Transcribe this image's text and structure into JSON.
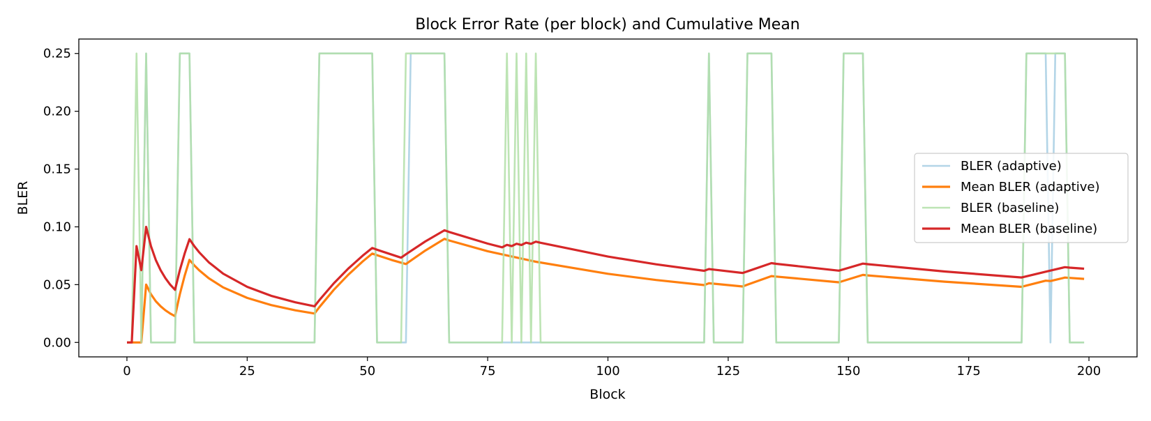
{
  "chart_data": {
    "type": "line",
    "title": "Block Error Rate (per block) and Cumulative Mean",
    "xlabel": "Block",
    "ylabel": "BLER",
    "xlim": [
      -10,
      210
    ],
    "ylim": [
      -0.0125,
      0.2625
    ],
    "xticks": [
      0,
      25,
      50,
      75,
      100,
      125,
      150,
      175,
      200
    ],
    "xtick_labels": [
      "0",
      "25",
      "50",
      "75",
      "100",
      "125",
      "150",
      "175",
      "200"
    ],
    "yticks": [
      0,
      0.05,
      0.1,
      0.15,
      0.2,
      0.25
    ],
    "ytick_labels": [
      "0.00",
      "0.05",
      "0.10",
      "0.15",
      "0.20",
      "0.25"
    ],
    "grid": false,
    "legend_position": "center-right",
    "series": [
      {
        "name": "BLER (adaptive)",
        "color": "#a6cee3",
        "style": "thin",
        "points": [
          [
            0,
            0
          ],
          [
            3,
            0
          ],
          [
            4,
            0.25
          ],
          [
            5,
            0
          ],
          [
            10,
            0
          ],
          [
            11,
            0.25
          ],
          [
            13,
            0.25
          ],
          [
            14,
            0
          ],
          [
            39,
            0
          ],
          [
            40,
            0.25
          ],
          [
            51,
            0.25
          ],
          [
            52,
            0
          ],
          [
            58,
            0
          ],
          [
            59,
            0.25
          ],
          [
            66,
            0.25
          ],
          [
            67,
            0
          ],
          [
            120,
            0
          ],
          [
            121,
            0.25
          ],
          [
            122,
            0
          ],
          [
            128,
            0
          ],
          [
            129,
            0.25
          ],
          [
            134,
            0.25
          ],
          [
            135,
            0
          ],
          [
            148,
            0
          ],
          [
            149,
            0.25
          ],
          [
            153,
            0.25
          ],
          [
            154,
            0
          ],
          [
            186,
            0
          ],
          [
            187,
            0.25
          ],
          [
            191,
            0.25
          ],
          [
            192,
            0
          ],
          [
            193,
            0.25
          ],
          [
            195,
            0.25
          ],
          [
            196,
            0
          ],
          [
            199,
            0
          ]
        ]
      },
      {
        "name": "Mean BLER (adaptive)",
        "color": "#ff7f0e",
        "style": "thick",
        "points": [
          [
            0,
            0
          ],
          [
            3,
            0
          ],
          [
            4,
            0.05
          ],
          [
            5,
            0.0417
          ],
          [
            6,
            0.0357
          ],
          [
            7,
            0.0313
          ],
          [
            8,
            0.0278
          ],
          [
            9,
            0.025
          ],
          [
            10,
            0.0227
          ],
          [
            11,
            0.0417
          ],
          [
            12,
            0.0577
          ],
          [
            13,
            0.0714
          ],
          [
            14,
            0.0667
          ],
          [
            15,
            0.0625
          ],
          [
            17,
            0.0556
          ],
          [
            20,
            0.0476
          ],
          [
            25,
            0.0385
          ],
          [
            30,
            0.0323
          ],
          [
            35,
            0.0278
          ],
          [
            39,
            0.025
          ],
          [
            40,
            0.0305
          ],
          [
            43,
            0.0455
          ],
          [
            46,
            0.0585
          ],
          [
            49,
            0.07
          ],
          [
            51,
            0.0769
          ],
          [
            52,
            0.0755
          ],
          [
            55,
            0.0714
          ],
          [
            58,
            0.0678
          ],
          [
            59,
            0.0708
          ],
          [
            62,
            0.0794
          ],
          [
            66,
            0.0896
          ],
          [
            67,
            0.0882
          ],
          [
            75,
            0.0789
          ],
          [
            85,
            0.0698
          ],
          [
            100,
            0.0594
          ],
          [
            110,
            0.054
          ],
          [
            120,
            0.0496
          ],
          [
            121,
            0.0512
          ],
          [
            122,
            0.0508
          ],
          [
            128,
            0.0484
          ],
          [
            129,
            0.05
          ],
          [
            134,
            0.0574
          ],
          [
            135,
            0.057
          ],
          [
            148,
            0.052
          ],
          [
            149,
            0.0533
          ],
          [
            153,
            0.0584
          ],
          [
            154,
            0.058
          ],
          [
            170,
            0.0526
          ],
          [
            186,
            0.0481
          ],
          [
            187,
            0.0492
          ],
          [
            191,
            0.0534
          ],
          [
            192,
            0.0531
          ],
          [
            193,
            0.0541
          ],
          [
            195,
            0.0561
          ],
          [
            196,
            0.0558
          ],
          [
            199,
            0.055
          ]
        ]
      },
      {
        "name": "BLER (baseline)",
        "color": "#b2dfa7",
        "style": "thin",
        "points": [
          [
            0,
            0
          ],
          [
            1,
            0
          ],
          [
            2,
            0.25
          ],
          [
            3,
            0
          ],
          [
            4,
            0.25
          ],
          [
            5,
            0
          ],
          [
            10,
            0
          ],
          [
            11,
            0.25
          ],
          [
            13,
            0.25
          ],
          [
            14,
            0
          ],
          [
            39,
            0
          ],
          [
            40,
            0.25
          ],
          [
            51,
            0.25
          ],
          [
            52,
            0
          ],
          [
            57,
            0
          ],
          [
            58,
            0.25
          ],
          [
            66,
            0.25
          ],
          [
            67,
            0
          ],
          [
            78,
            0
          ],
          [
            79,
            0.25
          ],
          [
            80,
            0
          ],
          [
            81,
            0.25
          ],
          [
            82,
            0
          ],
          [
            83,
            0.25
          ],
          [
            84,
            0
          ],
          [
            85,
            0.25
          ],
          [
            86,
            0
          ],
          [
            120,
            0
          ],
          [
            121,
            0.25
          ],
          [
            122,
            0
          ],
          [
            128,
            0
          ],
          [
            129,
            0.25
          ],
          [
            134,
            0.25
          ],
          [
            135,
            0
          ],
          [
            148,
            0
          ],
          [
            149,
            0.25
          ],
          [
            153,
            0.25
          ],
          [
            154,
            0
          ],
          [
            186,
            0
          ],
          [
            187,
            0.25
          ],
          [
            195,
            0.25
          ],
          [
            196,
            0
          ],
          [
            199,
            0
          ]
        ]
      },
      {
        "name": "Mean BLER (baseline)",
        "color": "#d62728",
        "style": "thick",
        "points": [
          [
            0,
            0
          ],
          [
            1,
            0
          ],
          [
            2,
            0.0833
          ],
          [
            3,
            0.0625
          ],
          [
            4,
            0.1
          ],
          [
            5,
            0.0833
          ],
          [
            6,
            0.0714
          ],
          [
            7,
            0.0625
          ],
          [
            8,
            0.0556
          ],
          [
            9,
            0.05
          ],
          [
            10,
            0.0455
          ],
          [
            11,
            0.0625
          ],
          [
            12,
            0.0769
          ],
          [
            13,
            0.0893
          ],
          [
            14,
            0.0833
          ],
          [
            15,
            0.0781
          ],
          [
            17,
            0.0694
          ],
          [
            20,
            0.0595
          ],
          [
            25,
            0.0481
          ],
          [
            30,
            0.0403
          ],
          [
            35,
            0.0347
          ],
          [
            39,
            0.0313
          ],
          [
            40,
            0.0366
          ],
          [
            43,
            0.0511
          ],
          [
            46,
            0.0638
          ],
          [
            49,
            0.075
          ],
          [
            51,
            0.0817
          ],
          [
            52,
            0.0802
          ],
          [
            57,
            0.0733
          ],
          [
            58,
            0.0763
          ],
          [
            62,
            0.0873
          ],
          [
            66,
            0.097
          ],
          [
            67,
            0.0956
          ],
          [
            75,
            0.0855
          ],
          [
            78,
            0.0823
          ],
          [
            79,
            0.0844
          ],
          [
            80,
            0.0833
          ],
          [
            81,
            0.0854
          ],
          [
            82,
            0.0843
          ],
          [
            83,
            0.0863
          ],
          [
            84,
            0.0853
          ],
          [
            85,
            0.0872
          ],
          [
            86,
            0.0862
          ],
          [
            100,
            0.0743
          ],
          [
            110,
            0.0676
          ],
          [
            120,
            0.062
          ],
          [
            121,
            0.0635
          ],
          [
            122,
            0.063
          ],
          [
            128,
            0.0601
          ],
          [
            129,
            0.0615
          ],
          [
            134,
            0.0686
          ],
          [
            135,
            0.068
          ],
          [
            148,
            0.0621
          ],
          [
            149,
            0.0633
          ],
          [
            153,
            0.0682
          ],
          [
            154,
            0.0677
          ],
          [
            170,
            0.0614
          ],
          [
            186,
            0.0562
          ],
          [
            187,
            0.0572
          ],
          [
            191,
            0.0612
          ],
          [
            195,
            0.0651
          ],
          [
            196,
            0.0647
          ],
          [
            199,
            0.0638
          ]
        ]
      }
    ]
  }
}
